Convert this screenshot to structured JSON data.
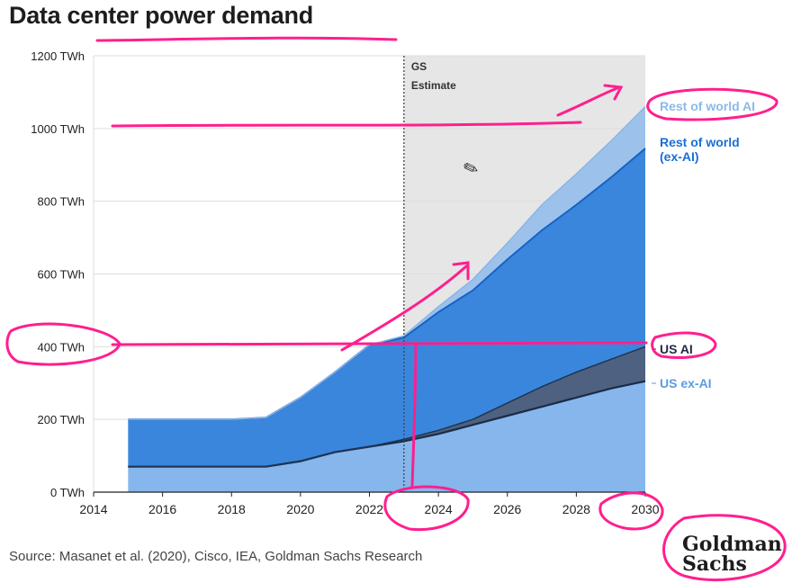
{
  "page": {
    "title": "Data center power demand",
    "source": "Source: Masanet et al. (2020), Cisco, IEA, Goldman Sachs Research",
    "logo_line1": "Goldman",
    "logo_line2": "Sachs",
    "cursor_icon": "pencil-cursor-icon"
  },
  "colors": {
    "rest_of_world_ai": "#9cc2ec",
    "rest_of_world_ex_ai": "#3a86dc",
    "us_ai": "#4e6180",
    "us_ex_ai": "#86b6ec",
    "estimate_shade": "#e6e6e6",
    "annotation": "#ff1f8e"
  },
  "chart_data": {
    "type": "area",
    "stacked": true,
    "title": "Data center power demand",
    "xlabel": "",
    "ylabel": "",
    "x": [
      2015,
      2016,
      2017,
      2018,
      2019,
      2020,
      2021,
      2022,
      2023,
      2024,
      2025,
      2026,
      2027,
      2028,
      2029,
      2030
    ],
    "xlim": [
      2014,
      2030
    ],
    "ylim": [
      0,
      1200
    ],
    "x_ticks": [
      "2014",
      "2016",
      "2018",
      "2020",
      "2022",
      "2024",
      "2026",
      "2028",
      "2030"
    ],
    "y_ticks": [
      "0 TWh",
      "200 TWh",
      "400 TWh",
      "600 TWh",
      "800 TWh",
      "1000 TWh",
      "1200 TWh"
    ],
    "estimate_start": 2023,
    "estimate_label": "GS Estimate",
    "grid": true,
    "legend_position": "right",
    "series": [
      {
        "name": "US ex-AI",
        "values": [
          70,
          70,
          70,
          70,
          70,
          85,
          110,
          125,
          140,
          160,
          185,
          210,
          235,
          260,
          285,
          305
        ]
      },
      {
        "name": "US AI",
        "values": [
          0,
          0,
          0,
          0,
          0,
          0,
          0,
          0,
          5,
          10,
          15,
          35,
          55,
          70,
          80,
          95
        ]
      },
      {
        "name": "Rest of world (ex-AI)",
        "values": [
          130,
          130,
          130,
          130,
          135,
          175,
          220,
          280,
          280,
          325,
          355,
          395,
          430,
          460,
          500,
          545
        ]
      },
      {
        "name": "Rest of world AI",
        "values": [
          0,
          0,
          0,
          0,
          0,
          0,
          0,
          0,
          5,
          15,
          30,
          45,
          70,
          85,
          100,
          115
        ]
      }
    ]
  }
}
